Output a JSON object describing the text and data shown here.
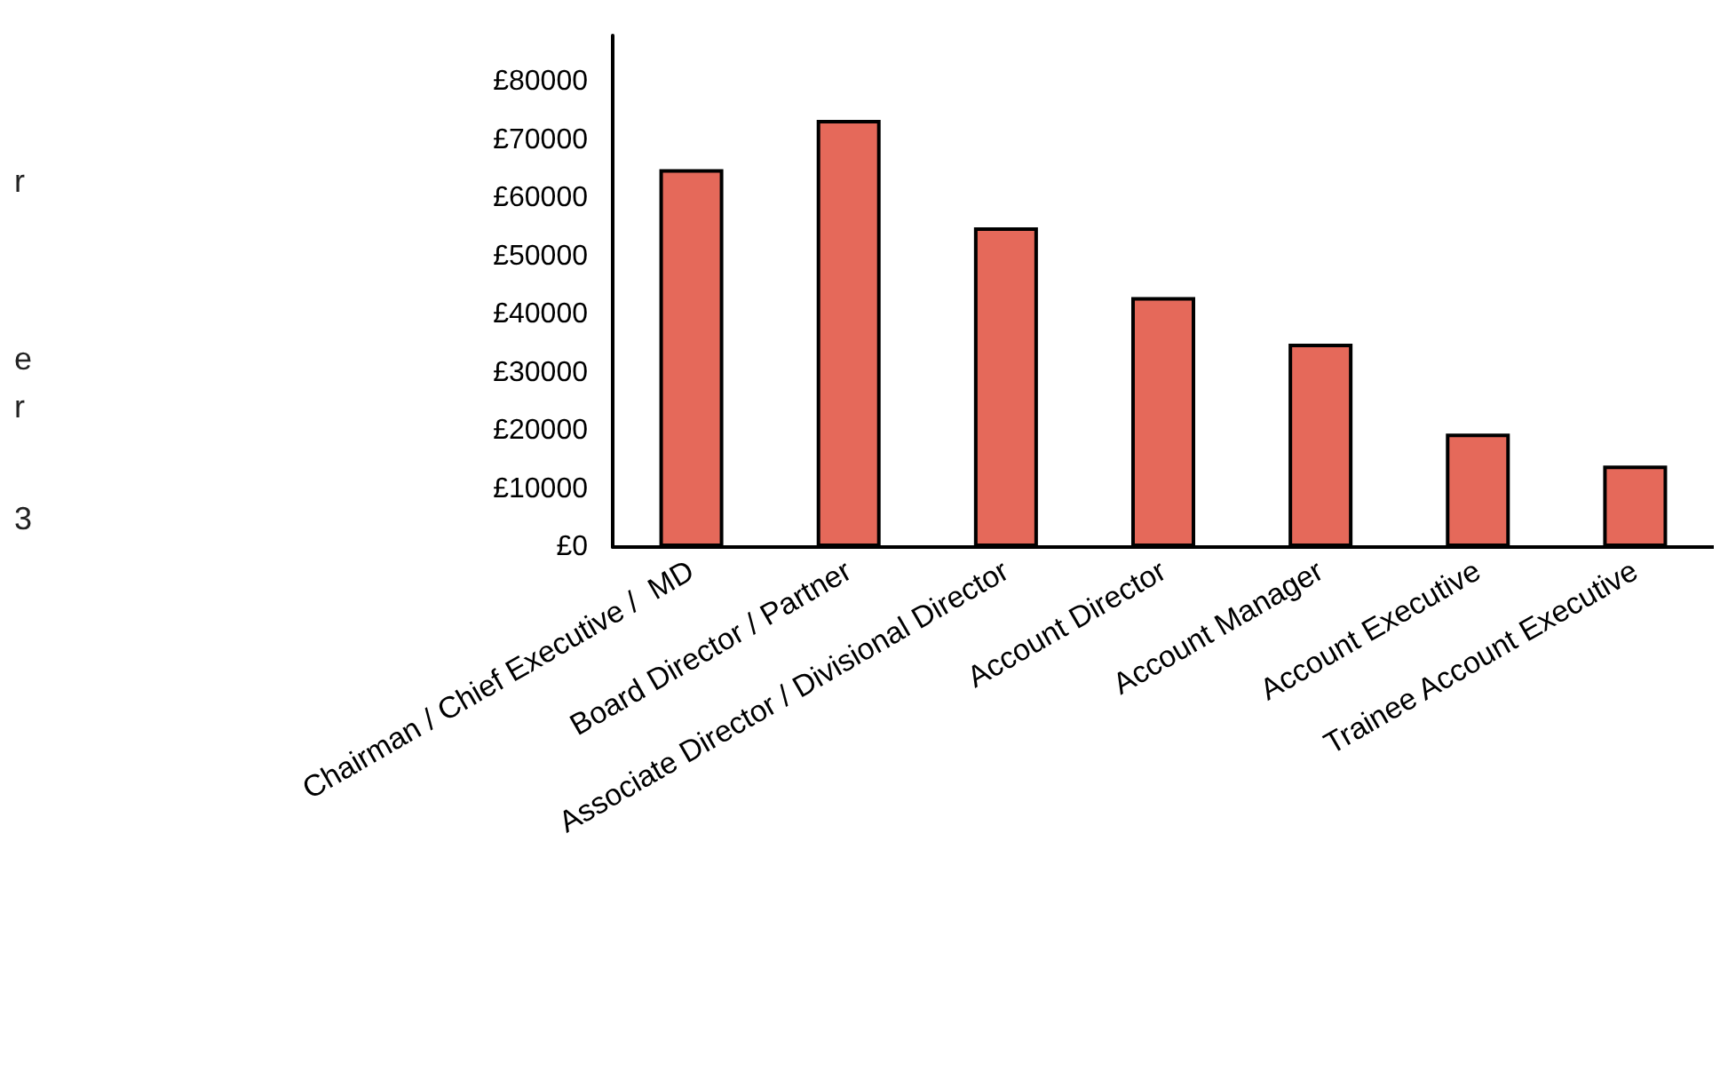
{
  "chart_data": {
    "type": "bar",
    "categories": [
      "Chairman / Chief Executive /  MD",
      "Board Director / Partner",
      "Associate Director / Divisional Director",
      "Account Director",
      "Account Manager",
      "Account Executive",
      "Trainee Account Executive"
    ],
    "values": [
      65000,
      73500,
      55000,
      43000,
      35000,
      19500,
      14000
    ],
    "color": "#e5695a",
    "ylim": [
      0,
      88000
    ],
    "yticks": [
      {
        "value": 0,
        "label": "£0"
      },
      {
        "value": 10000,
        "label": "£10000"
      },
      {
        "value": 20000,
        "label": "£20000"
      },
      {
        "value": 30000,
        "label": "£30000"
      },
      {
        "value": 40000,
        "label": "£40000"
      },
      {
        "value": 50000,
        "label": "£50000"
      },
      {
        "value": 60000,
        "label": "£60000"
      },
      {
        "value": 70000,
        "label": "£70000"
      },
      {
        "value": 80000,
        "label": "£80000"
      }
    ],
    "grid": false,
    "annotations": [
      "r",
      "e",
      "r",
      "3"
    ]
  }
}
